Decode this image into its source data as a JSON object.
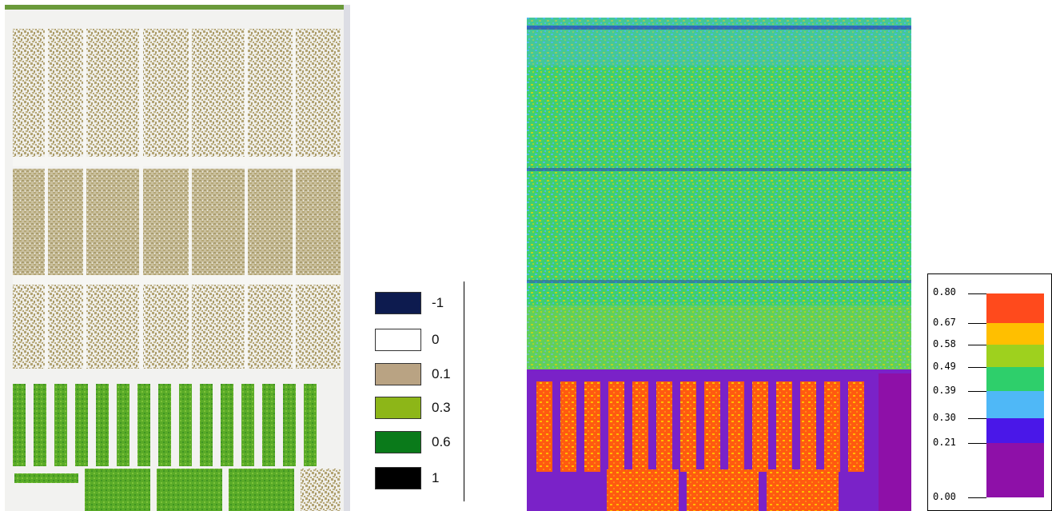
{
  "left_legend": {
    "items": [
      {
        "label": "-1",
        "color": "#0d1b4f"
      },
      {
        "label": "0",
        "color": "#ffffff"
      },
      {
        "label": "0.1",
        "color": "#b9a383"
      },
      {
        "label": "0.3",
        "color": "#8db618"
      },
      {
        "label": "0.6",
        "color": "#0a7a1a"
      },
      {
        "label": "1",
        "color": "#000000"
      }
    ]
  },
  "right_legend": {
    "ticks": [
      "0.80",
      "0.67",
      "0.58",
      "0.49",
      "0.39",
      "0.30",
      "0.21",
      "0.00"
    ],
    "bands": [
      {
        "from": 0.67,
        "to": 0.8,
        "color": "#ff4a1c"
      },
      {
        "from": 0.58,
        "to": 0.67,
        "color": "#ffbf00"
      },
      {
        "from": 0.49,
        "to": 0.58,
        "color": "#9ed11e"
      },
      {
        "from": 0.39,
        "to": 0.49,
        "color": "#2ecf6b"
      },
      {
        "from": 0.3,
        "to": 0.39,
        "color": "#4fb8f7"
      },
      {
        "from": 0.21,
        "to": 0.3,
        "color": "#4a17e8"
      },
      {
        "from": 0.0,
        "to": 0.21,
        "color": "#8e10a8"
      }
    ]
  },
  "colors": {
    "field_white": "#f4f4f2",
    "crop_tan": "#b3a474",
    "crop_green": "#5fae2a",
    "crop_dark_green": "#3f9a22",
    "ndvi_green": "#3fcf6e",
    "ndvi_cyan": "#4cb9e6",
    "ndvi_yellow": "#b9d31f",
    "ndvi_orange": "#ff5a10",
    "ndvi_purple": "#7a22c8",
    "ndvi_blue": "#2020c8"
  }
}
